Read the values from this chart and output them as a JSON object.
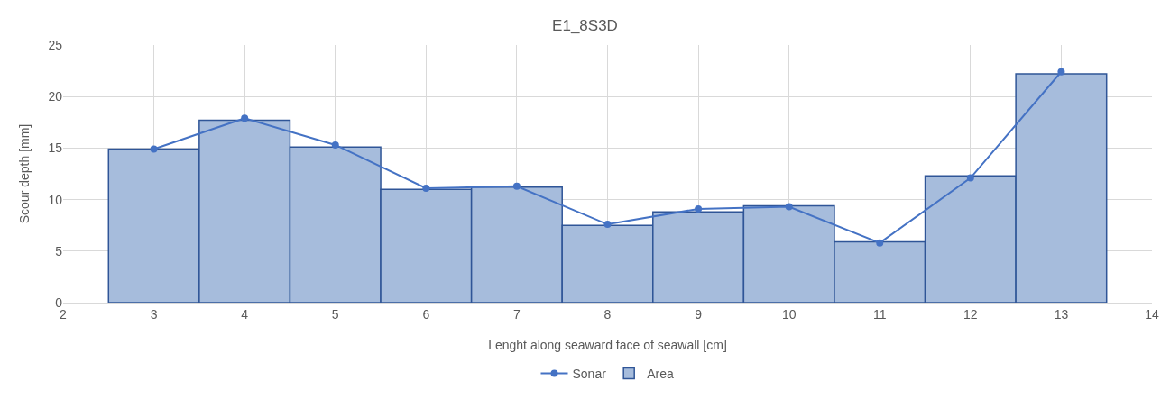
{
  "chart_data": {
    "type": "bar",
    "title": "E1_8S3D",
    "xlabel": "Lenght along seaward face of seawall [cm]",
    "ylabel": "Scour depth [mm]",
    "x": [
      3,
      4,
      5,
      6,
      7,
      8,
      9,
      10,
      11,
      12,
      13
    ],
    "series": [
      {
        "name": "Sonar",
        "type": "line",
        "color": "#4472c4",
        "marker": "circle",
        "values": [
          14.9,
          17.9,
          15.3,
          11.1,
          11.3,
          7.6,
          9.1,
          9.3,
          5.8,
          12.1,
          22.4
        ]
      },
      {
        "name": "Area",
        "color": "#a6bcdc",
        "values": [
          14.9,
          17.7,
          15.1,
          11.0,
          11.2,
          7.5,
          8.8,
          9.4,
          5.9,
          12.3,
          22.2
        ]
      }
    ],
    "xlim": [
      2,
      14
    ],
    "xticks": [
      2,
      3,
      4,
      5,
      6,
      7,
      8,
      9,
      10,
      11,
      12,
      13,
      14
    ],
    "ylim": [
      0,
      25
    ],
    "yticks": [
      0,
      5,
      10,
      15,
      20,
      25
    ],
    "grid": true,
    "legend": "bottom"
  }
}
